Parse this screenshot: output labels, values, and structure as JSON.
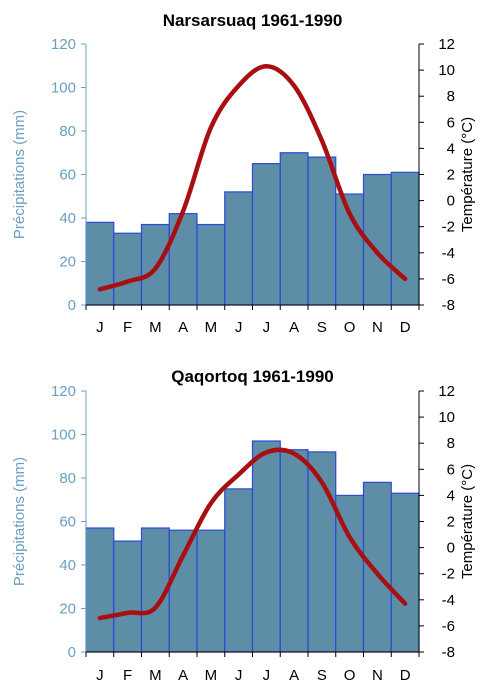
{
  "colors": {
    "bar_fill": "#5e8da8",
    "bar_stroke": "#2a49d8",
    "line": "#a70f10",
    "left_axis": "#6aa0c2",
    "right_axis": "#000000"
  },
  "chart_data": [
    {
      "type": "bar",
      "title": "Narsarsuaq 1961-1990",
      "categories": [
        "J",
        "F",
        "M",
        "A",
        "M",
        "J",
        "J",
        "A",
        "S",
        "O",
        "N",
        "D"
      ],
      "ylabel": "Précipitations (mm)",
      "ylim": [
        0,
        120
      ],
      "yticks": [
        "0",
        "20",
        "40",
        "60",
        "80",
        "100",
        "120"
      ],
      "y2label": "Température (°C)",
      "y2lim": [
        -8,
        12
      ],
      "y2ticks": [
        "-8",
        "-6",
        "-4",
        "-2",
        "0",
        "2",
        "4",
        "6",
        "8",
        "10",
        "12"
      ],
      "series": [
        {
          "type": "bar",
          "values": [
            38,
            33,
            37,
            42,
            37,
            52,
            65,
            70,
            68,
            51,
            60,
            61
          ]
        },
        {
          "type": "line",
          "axis": "right",
          "values": [
            -6.8,
            -6.2,
            -5.2,
            -0.8,
            5.6,
            8.8,
            10.3,
            8.8,
            4.6,
            -1.0,
            -4.0,
            -6.0
          ]
        }
      ]
    },
    {
      "type": "bar",
      "title": "Qaqortoq 1961-1990",
      "categories": [
        "J",
        "F",
        "M",
        "A",
        "M",
        "J",
        "J",
        "A",
        "S",
        "O",
        "N",
        "D"
      ],
      "ylabel": "Précipitations (mm)",
      "ylim": [
        0,
        120
      ],
      "yticks": [
        "0",
        "20",
        "40",
        "60",
        "80",
        "100",
        "120"
      ],
      "y2label": "Température (°C)",
      "y2lim": [
        -8,
        12
      ],
      "y2ticks": [
        "-8",
        "-6",
        "-4",
        "-2",
        "0",
        "2",
        "4",
        "6",
        "8",
        "10",
        "12"
      ],
      "series": [
        {
          "type": "bar",
          "values": [
            57,
            51,
            57,
            56,
            56,
            75,
            97,
            93,
            92,
            72,
            78,
            73
          ]
        },
        {
          "type": "line",
          "axis": "right",
          "values": [
            -5.4,
            -5.0,
            -4.6,
            -0.6,
            3.4,
            5.6,
            7.3,
            7.2,
            5.0,
            0.8,
            -2.0,
            -4.3
          ]
        }
      ]
    }
  ]
}
